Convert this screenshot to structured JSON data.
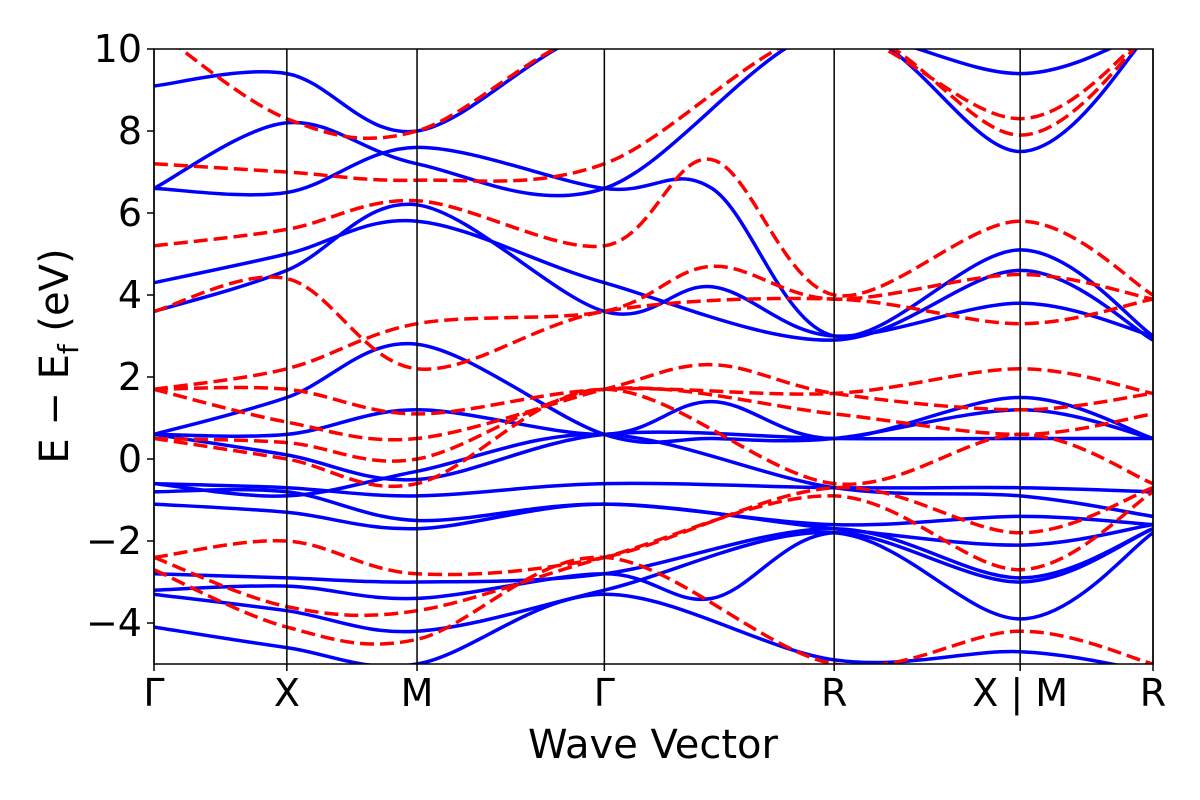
{
  "chart_data": {
    "type": "line",
    "title": "",
    "xlabel": "Wave Vector",
    "ylabel": "E − E_f (eV)",
    "ylabel_parts": {
      "main": "E  −  E",
      "sub": "f",
      "unit": " (eV)"
    },
    "ylim": [
      -5,
      10
    ],
    "yticks": [
      {
        "value": 10,
        "label": "10"
      },
      {
        "value": 8,
        "label": "8"
      },
      {
        "value": 6,
        "label": "6"
      },
      {
        "value": 4,
        "label": "4"
      },
      {
        "value": 2,
        "label": "2"
      },
      {
        "value": 0,
        "label": "0"
      },
      {
        "value": -2,
        "label": "−2"
      },
      {
        "value": -4,
        "label": "−4"
      }
    ],
    "high_symmetry_points": [
      {
        "position": 0.0,
        "label": "Γ"
      },
      {
        "position": 1.0,
        "label": "X"
      },
      {
        "position": 1.98,
        "label": "M"
      },
      {
        "position": 3.39,
        "label": "Γ"
      },
      {
        "position": 5.12,
        "label": "R"
      },
      {
        "position": 6.52,
        "label": "X | M"
      },
      {
        "position": 7.52,
        "label": "R"
      }
    ],
    "xlim": [
      0,
      7.52
    ],
    "grid": false,
    "legend": "none",
    "series": [
      {
        "style": "solid",
        "color": "#0000ff",
        "bands": [
          [
            [
              0,
              -4.1
            ],
            [
              1,
              -4.6
            ],
            [
              1.98,
              -5.0
            ],
            [
              3.39,
              -3.3
            ],
            [
              5.12,
              -4.9
            ],
            [
              6.52,
              -4.7
            ],
            [
              7.52,
              -5.2
            ]
          ],
          [
            [
              0,
              -3.3
            ],
            [
              1,
              -3.7
            ],
            [
              1.98,
              -4.2
            ],
            [
              3.39,
              -3.2
            ],
            [
              5.12,
              -1.8
            ],
            [
              6.52,
              -3.9
            ],
            [
              7.52,
              -1.8
            ]
          ],
          [
            [
              0,
              -3.2
            ],
            [
              1,
              -3.1
            ],
            [
              1.98,
              -3.4
            ],
            [
              3.39,
              -2.8
            ],
            [
              4.2,
              -3.4
            ],
            [
              5.12,
              -1.8
            ],
            [
              6.52,
              -3.0
            ],
            [
              7.52,
              -1.7
            ]
          ],
          [
            [
              0,
              -2.8
            ],
            [
              1,
              -2.9
            ],
            [
              1.98,
              -3.0
            ],
            [
              3.39,
              -2.8
            ],
            [
              5.12,
              -1.7
            ],
            [
              6.52,
              -2.9
            ],
            [
              7.52,
              -1.7
            ]
          ],
          [
            [
              0,
              -1.1
            ],
            [
              1,
              -1.3
            ],
            [
              1.98,
              -1.7
            ],
            [
              3.39,
              -1.1
            ],
            [
              5.12,
              -1.7
            ],
            [
              6.52,
              -2.1
            ],
            [
              7.52,
              -1.6
            ]
          ],
          [
            [
              0,
              -0.8
            ],
            [
              1,
              -0.8
            ],
            [
              1.98,
              -1.5
            ],
            [
              3.39,
              -1.1
            ],
            [
              5.12,
              -1.6
            ],
            [
              6.52,
              -1.4
            ],
            [
              7.52,
              -1.6
            ]
          ],
          [
            [
              0,
              -0.6
            ],
            [
              1,
              -0.7
            ],
            [
              1.98,
              -0.9
            ],
            [
              3.39,
              -0.6
            ],
            [
              5.12,
              -0.7
            ],
            [
              6.52,
              -0.7
            ],
            [
              7.52,
              -0.8
            ]
          ],
          [
            [
              0,
              -0.6
            ],
            [
              1,
              -0.9
            ],
            [
              1.98,
              -0.3
            ],
            [
              3.39,
              0.6
            ],
            [
              5.12,
              -0.7
            ],
            [
              6.52,
              -0.9
            ],
            [
              7.52,
              -1.4
            ]
          ],
          [
            [
              0,
              0.6
            ],
            [
              1,
              0.1
            ],
            [
              1.98,
              -0.5
            ],
            [
              3.39,
              0.6
            ],
            [
              5.12,
              0.5
            ],
            [
              6.52,
              0.5
            ],
            [
              7.52,
              0.5
            ]
          ],
          [
            [
              0,
              0.6
            ],
            [
              1,
              0.6
            ],
            [
              1.98,
              1.2
            ],
            [
              3.39,
              0.6
            ],
            [
              4.2,
              1.4
            ],
            [
              5.12,
              0.5
            ],
            [
              6.52,
              1.5
            ],
            [
              7.52,
              0.5
            ]
          ],
          [
            [
              0,
              0.6
            ],
            [
              1,
              1.5
            ],
            [
              1.98,
              2.8
            ],
            [
              3.39,
              0.6
            ],
            [
              4.2,
              0.5
            ],
            [
              5.12,
              0.5
            ],
            [
              6.52,
              1.2
            ],
            [
              7.52,
              0.5
            ]
          ],
          [
            [
              0,
              3.6
            ],
            [
              1,
              4.6
            ],
            [
              1.98,
              6.2
            ],
            [
              3.39,
              3.6
            ],
            [
              4.2,
              4.2
            ],
            [
              5.12,
              3.0
            ],
            [
              6.52,
              3.8
            ],
            [
              7.52,
              3.0
            ]
          ],
          [
            [
              0,
              4.3
            ],
            [
              1,
              5.0
            ],
            [
              1.98,
              5.8
            ],
            [
              3.39,
              4.3
            ],
            [
              5.12,
              2.9
            ],
            [
              6.52,
              4.6
            ],
            [
              7.52,
              2.9
            ]
          ],
          [
            [
              0,
              6.6
            ],
            [
              1,
              6.5
            ],
            [
              1.98,
              7.6
            ],
            [
              3.39,
              6.6
            ],
            [
              4.2,
              6.6
            ],
            [
              5.12,
              3.0
            ],
            [
              6.52,
              5.1
            ],
            [
              7.52,
              3.0
            ]
          ],
          [
            [
              0,
              6.6
            ],
            [
              1,
              8.2
            ],
            [
              1.98,
              7.2
            ],
            [
              3.39,
              6.6
            ],
            [
              5.12,
              10.5
            ],
            [
              6.52,
              7.5
            ],
            [
              7.52,
              10.5
            ]
          ],
          [
            [
              0,
              9.1
            ],
            [
              1,
              9.4
            ],
            [
              1.98,
              8.0
            ],
            [
              3.39,
              10.5
            ],
            [
              5.12,
              10.5
            ],
            [
              6.52,
              9.4
            ],
            [
              7.52,
              10.5
            ]
          ]
        ]
      },
      {
        "style": "dashed",
        "color": "#ff0000",
        "bands": [
          [
            [
              0,
              -2.7
            ],
            [
              1,
              -4.1
            ],
            [
              1.98,
              -4.4
            ],
            [
              3.39,
              -2.4
            ],
            [
              5.12,
              -5.0
            ],
            [
              6.52,
              -4.2
            ],
            [
              7.52,
              -5.0
            ]
          ],
          [
            [
              0,
              -2.4
            ],
            [
              1,
              -3.6
            ],
            [
              1.98,
              -3.7
            ],
            [
              3.39,
              -2.4
            ],
            [
              5.12,
              -0.9
            ],
            [
              6.52,
              -2.7
            ],
            [
              7.52,
              -0.8
            ]
          ],
          [
            [
              0,
              -2.4
            ],
            [
              1,
              -2.0
            ],
            [
              1.98,
              -2.8
            ],
            [
              3.39,
              -2.4
            ],
            [
              5.12,
              -0.7
            ],
            [
              6.52,
              -1.8
            ],
            [
              7.52,
              -0.7
            ]
          ],
          [
            [
              0,
              0.5
            ],
            [
              1,
              0.0
            ],
            [
              1.98,
              -0.6
            ],
            [
              3.39,
              1.7
            ],
            [
              5.12,
              -0.6
            ],
            [
              6.52,
              0.6
            ],
            [
              7.52,
              -0.6
            ]
          ],
          [
            [
              0,
              0.5
            ],
            [
              1,
              0.4
            ],
            [
              1.98,
              0.0
            ],
            [
              3.39,
              1.7
            ],
            [
              5.12,
              1.1
            ],
            [
              6.52,
              0.6
            ],
            [
              7.52,
              1.1
            ]
          ],
          [
            [
              0,
              1.7
            ],
            [
              1,
              0.9
            ],
            [
              1.98,
              0.5
            ],
            [
              3.39,
              1.7
            ],
            [
              4.2,
              2.3
            ],
            [
              5.12,
              1.6
            ],
            [
              6.52,
              1.2
            ],
            [
              7.52,
              1.6
            ]
          ],
          [
            [
              0,
              1.7
            ],
            [
              1,
              1.7
            ],
            [
              1.98,
              1.1
            ],
            [
              3.39,
              1.7
            ],
            [
              5.12,
              1.6
            ],
            [
              6.52,
              2.2
            ],
            [
              7.52,
              1.6
            ]
          ],
          [
            [
              0,
              1.7
            ],
            [
              1,
              2.2
            ],
            [
              1.98,
              3.3
            ],
            [
              3.39,
              3.6
            ],
            [
              4.2,
              4.7
            ],
            [
              5.12,
              3.9
            ],
            [
              6.52,
              4.5
            ],
            [
              7.52,
              3.9
            ]
          ],
          [
            [
              0,
              3.6
            ],
            [
              1,
              4.4
            ],
            [
              1.98,
              2.2
            ],
            [
              3.39,
              3.6
            ],
            [
              5.12,
              3.9
            ],
            [
              6.52,
              3.3
            ],
            [
              7.52,
              3.9
            ]
          ],
          [
            [
              0,
              5.2
            ],
            [
              1,
              5.6
            ],
            [
              1.98,
              6.3
            ],
            [
              3.39,
              5.2
            ],
            [
              4.2,
              7.3
            ],
            [
              5.12,
              4.0
            ],
            [
              6.52,
              5.8
            ],
            [
              7.52,
              4.0
            ]
          ],
          [
            [
              0,
              7.2
            ],
            [
              1,
              7.0
            ],
            [
              1.98,
              6.8
            ],
            [
              3.39,
              7.2
            ],
            [
              5.12,
              10.5
            ],
            [
              6.52,
              7.9
            ],
            [
              7.52,
              10.5
            ]
          ],
          [
            [
              0,
              10.5
            ],
            [
              1,
              8.3
            ],
            [
              1.98,
              8.0
            ],
            [
              3.39,
              10.5
            ],
            [
              5.12,
              10.5
            ],
            [
              6.52,
              8.3
            ],
            [
              7.52,
              10.5
            ]
          ]
        ]
      }
    ]
  }
}
